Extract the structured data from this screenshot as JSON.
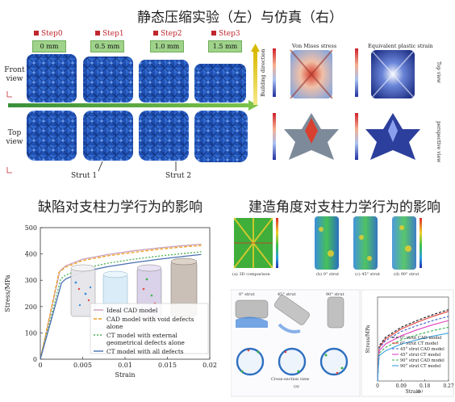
{
  "title_top": "静态压缩实验（左）与仿真（右）",
  "steps": [
    {
      "label": "Step0",
      "mm": "0 mm"
    },
    {
      "label": "Step1",
      "mm": "0.5 mm"
    },
    {
      "label": "Step2",
      "mm": "1.0 mm"
    },
    {
      "label": "Step3",
      "mm": "1.5 mm"
    }
  ],
  "views": {
    "front": "Front view",
    "top": "Top view"
  },
  "struts": {
    "s1": "Strut 1",
    "s2": "Strut 2"
  },
  "building_direction": "Building direction",
  "sim": {
    "von_mises": "Von Mises stress",
    "plastic_strain": "Equivalent plastic strain",
    "top_view": "Top view",
    "perspective_view": "perspective view"
  },
  "title_defect": "缺陷对支柱力学行为的影响",
  "title_angle": "建造角度对支柱力学行为的影响",
  "angle_labels": {
    "a": "(a) 3D comparison",
    "b": "(b) 0° strut",
    "c": "(c) 45° strut",
    "d": "(d) 90° strut"
  },
  "strut_labels": {
    "s0": "0° strut",
    "s45": "45° strut",
    "s90": "90° strut"
  },
  "cross_section": "Cross-section view",
  "panel_a": "(a)",
  "panel_b": "(b)",
  "colors": {
    "lattice_blue": "#2756b8",
    "ideal": "#c9a0b8",
    "cad_void": "#f0a020",
    "ct_ext": "#4caf50",
    "ct_all": "#4a6fb0"
  },
  "chart_data": [
    {
      "type": "line",
      "xlabel": "Strain",
      "ylabel": "Stress/MPa",
      "xlim": [
        0,
        0.02
      ],
      "ylim": [
        0,
        500
      ],
      "xticks": [
        "0",
        "0.005",
        "0.01",
        "0.015",
        "0.02"
      ],
      "yticks": [
        "0",
        "100",
        "200",
        "300",
        "400",
        "500"
      ],
      "series": [
        {
          "name": "Ideal CAD model",
          "color": "#c9a0b8",
          "dash": "",
          "x": [
            0,
            0.0023,
            0.003,
            0.005,
            0.008,
            0.011,
            0.014,
            0.017,
            0.019
          ],
          "y": [
            0,
            335,
            355,
            380,
            398,
            412,
            423,
            432,
            437
          ]
        },
        {
          "name": "CAD model with void defects alone",
          "color": "#f0a020",
          "dash": "4,2",
          "x": [
            0,
            0.0022,
            0.003,
            0.005,
            0.008,
            0.011,
            0.014,
            0.017,
            0.019
          ],
          "y": [
            0,
            330,
            350,
            375,
            393,
            406,
            418,
            427,
            432
          ]
        },
        {
          "name": "CT model with external geometrical defects alone",
          "color": "#4caf50",
          "dash": "2,2",
          "x": [
            0,
            0.0024,
            0.003,
            0.005,
            0.008,
            0.011,
            0.014,
            0.017,
            0.019
          ],
          "y": [
            0,
            305,
            320,
            345,
            365,
            380,
            392,
            402,
            408
          ]
        },
        {
          "name": "CT model with all defects",
          "color": "#4a6fb0",
          "dash": "",
          "x": [
            0,
            0.0025,
            0.003,
            0.005,
            0.008,
            0.011,
            0.014,
            0.017,
            0.019
          ],
          "y": [
            0,
            290,
            305,
            332,
            352,
            367,
            380,
            391,
            398
          ]
        }
      ]
    },
    {
      "type": "line",
      "xlabel": "Strain",
      "ylabel": "Stress/MPa",
      "xlim": [
        0,
        0.27
      ],
      "ylim": [
        0,
        1000
      ],
      "xticks": [
        "0",
        "0.09",
        "0.18",
        "0.27"
      ],
      "series": [
        {
          "name": "0° strut CAD model",
          "color": "#111111",
          "dash": "3,2",
          "x": [
            0,
            0.006,
            0.03,
            0.09,
            0.15,
            0.21,
            0.27
          ],
          "y": [
            0,
            420,
            520,
            640,
            720,
            790,
            850
          ]
        },
        {
          "name": "0° strut CT model",
          "color": "#e0403a",
          "dash": "",
          "x": [
            0,
            0.006,
            0.03,
            0.09,
            0.15,
            0.21,
            0.27
          ],
          "y": [
            0,
            400,
            500,
            620,
            700,
            770,
            830
          ]
        },
        {
          "name": "45° strut CAD model",
          "color": "#3a5fd0",
          "dash": "3,2",
          "x": [
            0,
            0.006,
            0.03,
            0.09,
            0.15,
            0.21,
            0.27
          ],
          "y": [
            0,
            390,
            480,
            590,
            660,
            720,
            770
          ]
        },
        {
          "name": "45° strut CT model",
          "color": "#e040c0",
          "dash": "",
          "x": [
            0,
            0.006,
            0.03,
            0.09,
            0.15,
            0.21,
            0.27
          ],
          "y": [
            0,
            360,
            440,
            540,
            610,
            670,
            720
          ]
        },
        {
          "name": "90° strut CAD model",
          "color": "#30b050",
          "dash": "3,2",
          "x": [
            0,
            0.006,
            0.03,
            0.09,
            0.15,
            0.21,
            0.27
          ],
          "y": [
            0,
            330,
            400,
            490,
            550,
            600,
            640
          ]
        },
        {
          "name": "90° strut CT model",
          "color": "#3aa0e0",
          "dash": "",
          "x": [
            0,
            0.006,
            0.03,
            0.09,
            0.15,
            0.21,
            0.27
          ],
          "y": [
            0,
            300,
            360,
            440,
            490,
            535,
            570
          ]
        }
      ]
    }
  ]
}
